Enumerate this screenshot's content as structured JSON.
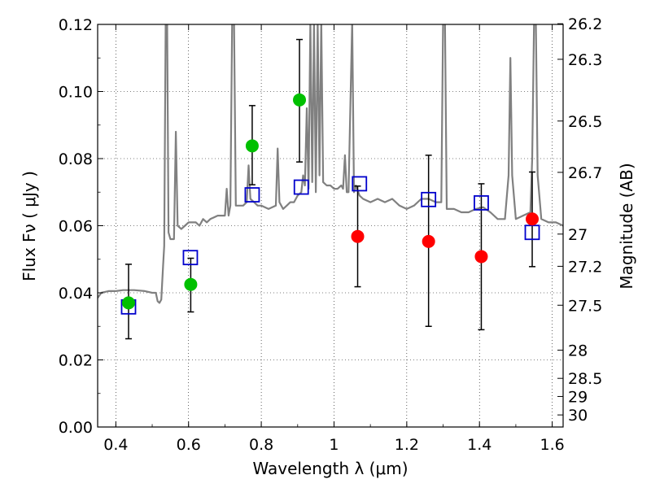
{
  "chart_data": {
    "type": "scatter",
    "xlabel": "Wavelength  λ (μm)",
    "ylabel": "Flux  Fν  ( μJy )",
    "ylabel_right": "Magnitude (AB)",
    "xlim": [
      0.35,
      1.63
    ],
    "ylim": [
      0.0,
      0.12
    ],
    "grid": true,
    "x_ticks": [
      {
        "value": 0.4,
        "label": "0.4"
      },
      {
        "value": 0.6,
        "label": "0.6"
      },
      {
        "value": 0.8,
        "label": "0.8"
      },
      {
        "value": 1.0,
        "label": "1"
      },
      {
        "value": 1.2,
        "label": "1.2"
      },
      {
        "value": 1.4,
        "label": "1.4"
      },
      {
        "value": 1.6,
        "label": "1.6"
      }
    ],
    "y_ticks": [
      {
        "value": 0.0,
        "label": "0.00"
      },
      {
        "value": 0.02,
        "label": "0.02"
      },
      {
        "value": 0.04,
        "label": "0.04"
      },
      {
        "value": 0.06,
        "label": "0.06"
      },
      {
        "value": 0.08,
        "label": "0.08"
      },
      {
        "value": 0.1,
        "label": "0.10"
      },
      {
        "value": 0.12,
        "label": "0.12"
      }
    ],
    "right_ticks": [
      {
        "flux": 0.1202,
        "label": "26.2"
      },
      {
        "flux": 0.1096,
        "label": "26.3"
      },
      {
        "flux": 0.0912,
        "label": "26.5"
      },
      {
        "flux": 0.0759,
        "label": "26.7"
      },
      {
        "flux": 0.0575,
        "label": "27"
      },
      {
        "flux": 0.0479,
        "label": "27.2"
      },
      {
        "flux": 0.0363,
        "label": "27.5"
      },
      {
        "flux": 0.0229,
        "label": "28"
      },
      {
        "flux": 0.0145,
        "label": "28.5"
      },
      {
        "flux": 0.0091,
        "label": "29"
      },
      {
        "flux": 0.0036,
        "label": "30"
      }
    ],
    "series": [
      {
        "type": "line",
        "color": "#808080",
        "points": [
          [
            0.35,
            0.0385
          ],
          [
            0.36,
            0.04
          ],
          [
            0.38,
            0.0405
          ],
          [
            0.4,
            0.0405
          ],
          [
            0.42,
            0.0408
          ],
          [
            0.45,
            0.0408
          ],
          [
            0.48,
            0.0405
          ],
          [
            0.5,
            0.04
          ],
          [
            0.51,
            0.04
          ],
          [
            0.515,
            0.0375
          ],
          [
            0.52,
            0.037
          ],
          [
            0.525,
            0.038
          ],
          [
            0.53,
            0.048
          ],
          [
            0.533,
            0.054
          ],
          [
            0.537,
            0.121
          ],
          [
            0.541,
            0.121
          ],
          [
            0.545,
            0.058
          ],
          [
            0.55,
            0.056
          ],
          [
            0.56,
            0.056
          ],
          [
            0.565,
            0.088
          ],
          [
            0.57,
            0.06
          ],
          [
            0.58,
            0.059
          ],
          [
            0.59,
            0.06
          ],
          [
            0.6,
            0.061
          ],
          [
            0.61,
            0.061
          ],
          [
            0.62,
            0.061
          ],
          [
            0.63,
            0.06
          ],
          [
            0.64,
            0.062
          ],
          [
            0.65,
            0.061
          ],
          [
            0.66,
            0.062
          ],
          [
            0.67,
            0.0625
          ],
          [
            0.68,
            0.063
          ],
          [
            0.69,
            0.063
          ],
          [
            0.7,
            0.063
          ],
          [
            0.705,
            0.071
          ],
          [
            0.71,
            0.063
          ],
          [
            0.715,
            0.066
          ],
          [
            0.72,
            0.121
          ],
          [
            0.725,
            0.121
          ],
          [
            0.73,
            0.066
          ],
          [
            0.74,
            0.066
          ],
          [
            0.75,
            0.066
          ],
          [
            0.76,
            0.067
          ],
          [
            0.765,
            0.078
          ],
          [
            0.77,
            0.068
          ],
          [
            0.78,
            0.067
          ],
          [
            0.79,
            0.066
          ],
          [
            0.8,
            0.066
          ],
          [
            0.82,
            0.065
          ],
          [
            0.84,
            0.066
          ],
          [
            0.845,
            0.083
          ],
          [
            0.85,
            0.067
          ],
          [
            0.86,
            0.065
          ],
          [
            0.87,
            0.066
          ],
          [
            0.88,
            0.067
          ],
          [
            0.89,
            0.067
          ],
          [
            0.9,
            0.069
          ],
          [
            0.91,
            0.07
          ],
          [
            0.915,
            0.075
          ],
          [
            0.92,
            0.072
          ],
          [
            0.925,
            0.095
          ],
          [
            0.93,
            0.071
          ],
          [
            0.935,
            0.121
          ],
          [
            0.94,
            0.073
          ],
          [
            0.945,
            0.121
          ],
          [
            0.95,
            0.07
          ],
          [
            0.955,
            0.121
          ],
          [
            0.96,
            0.075
          ],
          [
            0.965,
            0.121
          ],
          [
            0.97,
            0.073
          ],
          [
            0.98,
            0.072
          ],
          [
            0.99,
            0.072
          ],
          [
            1.0,
            0.071
          ],
          [
            1.01,
            0.071
          ],
          [
            1.02,
            0.072
          ],
          [
            1.025,
            0.071
          ],
          [
            1.03,
            0.081
          ],
          [
            1.035,
            0.07
          ],
          [
            1.04,
            0.07
          ],
          [
            1.05,
            0.121
          ],
          [
            1.055,
            0.07
          ],
          [
            1.06,
            0.072
          ],
          [
            1.07,
            0.069
          ],
          [
            1.08,
            0.068
          ],
          [
            1.1,
            0.067
          ],
          [
            1.12,
            0.068
          ],
          [
            1.14,
            0.067
          ],
          [
            1.16,
            0.068
          ],
          [
            1.18,
            0.066
          ],
          [
            1.2,
            0.065
          ],
          [
            1.22,
            0.066
          ],
          [
            1.24,
            0.068
          ],
          [
            1.26,
            0.068
          ],
          [
            1.28,
            0.067
          ],
          [
            1.295,
            0.067
          ],
          [
            1.3,
            0.121
          ],
          [
            1.305,
            0.121
          ],
          [
            1.31,
            0.065
          ],
          [
            1.33,
            0.065
          ],
          [
            1.35,
            0.064
          ],
          [
            1.37,
            0.064
          ],
          [
            1.39,
            0.065
          ],
          [
            1.41,
            0.0655
          ],
          [
            1.43,
            0.064
          ],
          [
            1.45,
            0.062
          ],
          [
            1.47,
            0.062
          ],
          [
            1.48,
            0.075
          ],
          [
            1.485,
            0.11
          ],
          [
            1.49,
            0.075
          ],
          [
            1.5,
            0.062
          ],
          [
            1.52,
            0.063
          ],
          [
            1.54,
            0.064
          ],
          [
            1.545,
            0.08
          ],
          [
            1.55,
            0.121
          ],
          [
            1.555,
            0.121
          ],
          [
            1.56,
            0.075
          ],
          [
            1.57,
            0.062
          ],
          [
            1.59,
            0.061
          ],
          [
            1.61,
            0.061
          ],
          [
            1.63,
            0.06
          ]
        ]
      },
      {
        "type": "scatter",
        "marker": "circle",
        "color": "#00c000",
        "points": [
          {
            "x": 0.435,
            "y": 0.037
          },
          {
            "x": 0.606,
            "y": 0.0425
          },
          {
            "x": 0.775,
            "y": 0.0838
          },
          {
            "x": 0.905,
            "y": 0.0975
          }
        ]
      },
      {
        "type": "scatter",
        "marker": "circle",
        "color": "#ff0000",
        "points": [
          {
            "x": 1.065,
            "y": 0.0568
          },
          {
            "x": 1.26,
            "y": 0.0553
          },
          {
            "x": 1.405,
            "y": 0.0508
          },
          {
            "x": 1.545,
            "y": 0.062
          }
        ]
      },
      {
        "type": "scatter",
        "marker": "open-square",
        "color": "#0000cc",
        "points": [
          {
            "x": 0.435,
            "y": 0.0358
          },
          {
            "x": 0.605,
            "y": 0.0505
          },
          {
            "x": 0.775,
            "y": 0.0692
          },
          {
            "x": 0.91,
            "y": 0.0715
          },
          {
            "x": 1.07,
            "y": 0.0725
          },
          {
            "x": 1.26,
            "y": 0.0678
          },
          {
            "x": 1.405,
            "y": 0.0668
          },
          {
            "x": 1.545,
            "y": 0.058
          }
        ]
      },
      {
        "type": "errorbar",
        "color": "#000000",
        "bars": [
          {
            "x": 0.435,
            "low": 0.0263,
            "high": 0.0485
          },
          {
            "x": 0.606,
            "low": 0.0343,
            "high": 0.0503
          },
          {
            "x": 0.775,
            "low": 0.0722,
            "high": 0.0958
          },
          {
            "x": 0.905,
            "low": 0.079,
            "high": 0.1155
          },
          {
            "x": 1.065,
            "low": 0.0418,
            "high": 0.0718
          },
          {
            "x": 1.26,
            "low": 0.03,
            "high": 0.081
          },
          {
            "x": 1.405,
            "low": 0.029,
            "high": 0.0725
          },
          {
            "x": 1.545,
            "low": 0.0478,
            "high": 0.076
          }
        ]
      }
    ]
  }
}
